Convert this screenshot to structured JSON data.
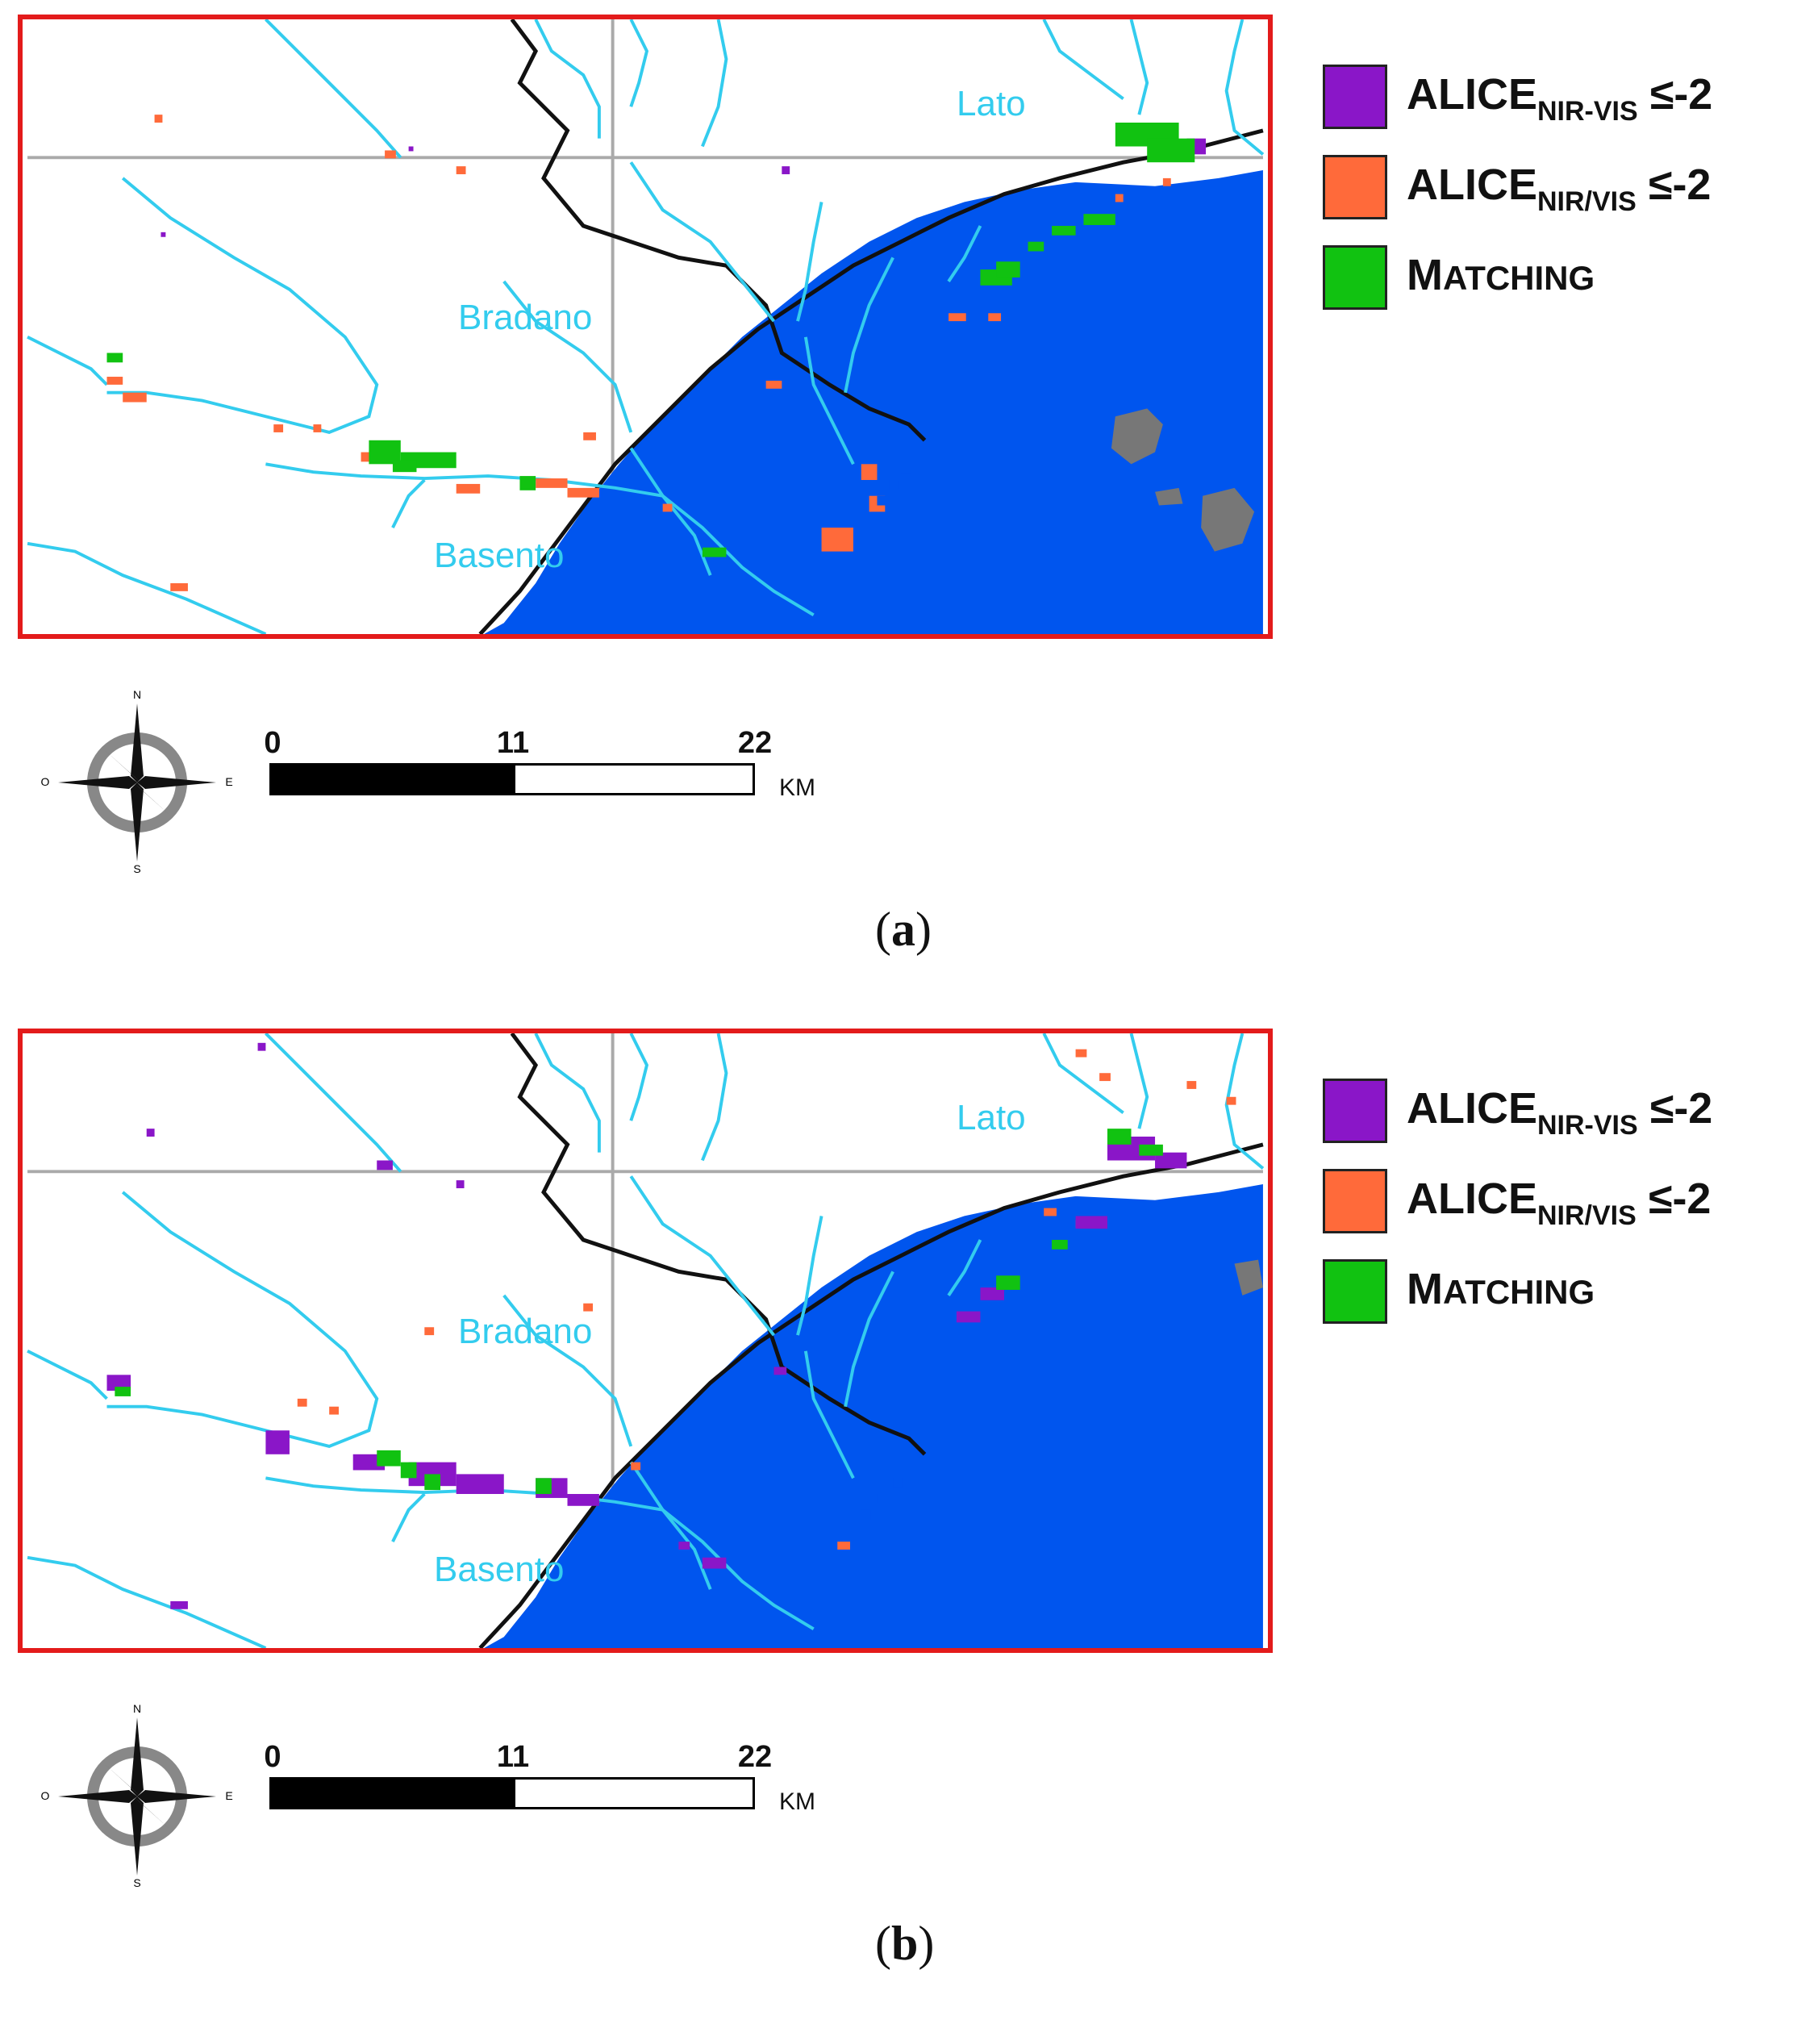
{
  "panels": [
    {
      "id": "a",
      "caption_label": "a",
      "rivers": [
        "Lato",
        "Bradano",
        "Basento"
      ],
      "legend": [
        {
          "prefix": "ALICE",
          "sub": "NIR-VIS",
          "suffix": " ≤-2",
          "color": "#8a16c8"
        },
        {
          "prefix": "ALICE",
          "sub": "NIR/VIS",
          "suffix": " ≤-2",
          "color": "#ff6a3a"
        },
        {
          "prefix": "M",
          "sub": "",
          "suffix": "ATCHING",
          "color": "#11c211"
        }
      ],
      "scale": {
        "ticks": [
          "0",
          "11",
          "22"
        ],
        "unit": "KM"
      },
      "compass": {
        "n": "N",
        "s": "S",
        "e": "E",
        "o": "O"
      }
    },
    {
      "id": "b",
      "caption_label": "b",
      "rivers": [
        "Lato",
        "Bradano",
        "Basento"
      ],
      "legend": [
        {
          "prefix": "ALICE",
          "sub": "NIR-VIS",
          "suffix": " ≤-2",
          "color": "#8a16c8"
        },
        {
          "prefix": "ALICE",
          "sub": "NIR/VIS",
          "suffix": " ≤-2",
          "color": "#ff6a3a"
        },
        {
          "prefix": "M",
          "sub": "",
          "suffix": "ATCHING",
          "color": "#11c211"
        }
      ],
      "scale": {
        "ticks": [
          "0",
          "11",
          "22"
        ],
        "unit": "KM"
      },
      "compass": {
        "n": "N",
        "s": "S",
        "e": "E",
        "o": "O"
      }
    }
  ],
  "colors": {
    "frame": "#e31b1b",
    "river": "#33ccee",
    "sea": "#0055ee",
    "urban": "#777777",
    "boundary": "#111111",
    "grid": "#aaaaaa"
  }
}
